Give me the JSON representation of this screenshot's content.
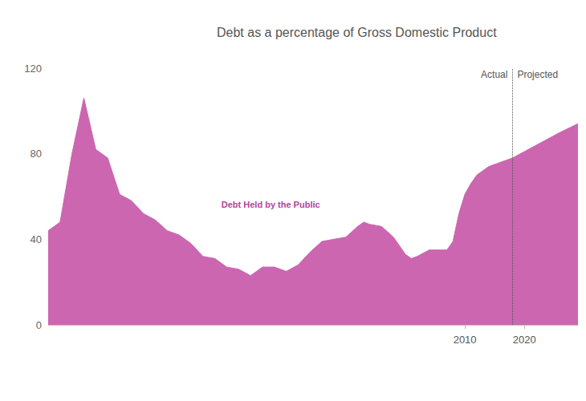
{
  "chart_data": {
    "type": "area",
    "title": "Debt as a percentage of Gross Domestic Product",
    "x": [
      1940,
      1942,
      1944,
      1946,
      1948,
      1950,
      1952,
      1954,
      1956,
      1958,
      1960,
      1962,
      1964,
      1966,
      1968,
      1970,
      1972,
      1974,
      1976,
      1978,
      1980,
      1982,
      1984,
      1986,
      1988,
      1990,
      1992,
      1993,
      1994,
      1996,
      1998,
      2000,
      2001,
      2002,
      2004,
      2006,
      2007,
      2008,
      2009,
      2010,
      2011,
      2012,
      2014,
      2016,
      2018,
      2020,
      2022,
      2024,
      2026,
      2029
    ],
    "series": [
      {
        "name": "Debt Held by the Public",
        "color": "#cc66b0",
        "values": [
          44,
          48,
          80,
          106,
          82,
          78,
          61,
          58,
          52,
          49,
          44,
          42,
          38,
          32,
          31,
          27,
          26,
          23,
          27,
          27,
          25,
          28,
          34,
          39,
          40,
          41,
          46,
          48,
          47,
          46,
          41,
          33,
          31,
          32,
          35,
          35,
          35,
          39,
          52,
          61,
          66,
          70,
          74,
          76,
          78,
          81,
          84,
          87,
          90,
          94
        ]
      }
    ],
    "divider": {
      "x": 2018,
      "left_label": "Actual",
      "right_label": "Projected"
    },
    "xlim": [
      1940,
      2029
    ],
    "xticks": [
      2010,
      2020
    ],
    "ylim": [
      0,
      120
    ],
    "yticks": [
      0,
      40,
      80,
      120
    ],
    "grid": false
  }
}
